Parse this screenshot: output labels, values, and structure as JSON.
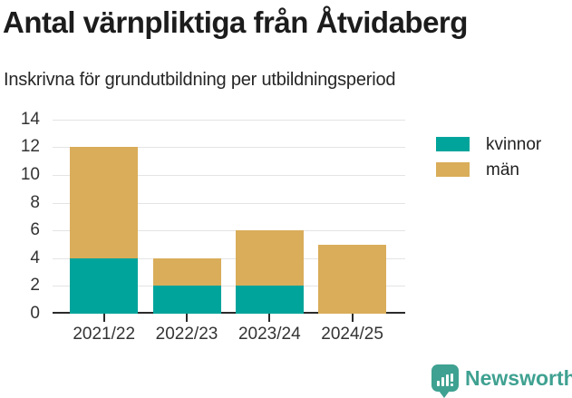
{
  "title": "Antal värnpliktiga från Åtvidaberg",
  "subtitle": "Inskrivna för grundutbildning per utbildningsperiod",
  "colors": {
    "kvinnor": "#00a49b",
    "man": "#d9ad5a",
    "brand": "#3fa191",
    "grid": "#e4e4e4",
    "axis": "#2b2b2b",
    "tick_text": "#333333"
  },
  "chart_data": {
    "type": "bar",
    "stacked": true,
    "title": "Antal värnpliktiga från Åtvidaberg",
    "subtitle": "Inskrivna för grundutbildning per utbildningsperiod",
    "categories": [
      "2021/22",
      "2022/23",
      "2023/24",
      "2024/25"
    ],
    "series": [
      {
        "key": "kvinnor",
        "name": "kvinnor",
        "color": "#00a49b",
        "values": [
          4,
          2,
          2,
          0
        ]
      },
      {
        "key": "man",
        "name": "män",
        "color": "#d9ad5a",
        "values": [
          8,
          2,
          4,
          5
        ]
      }
    ],
    "totals": [
      12,
      4,
      6,
      5
    ],
    "xlabel": "",
    "ylabel": "",
    "ylim": [
      0,
      14
    ],
    "yticks": [
      0,
      2,
      4,
      6,
      8,
      10,
      12,
      14
    ],
    "grid": true,
    "legend_position": "right"
  },
  "branding": {
    "logo_text": "Newsworthy",
    "logo_icon": "bar-chart-exclamation-icon"
  }
}
